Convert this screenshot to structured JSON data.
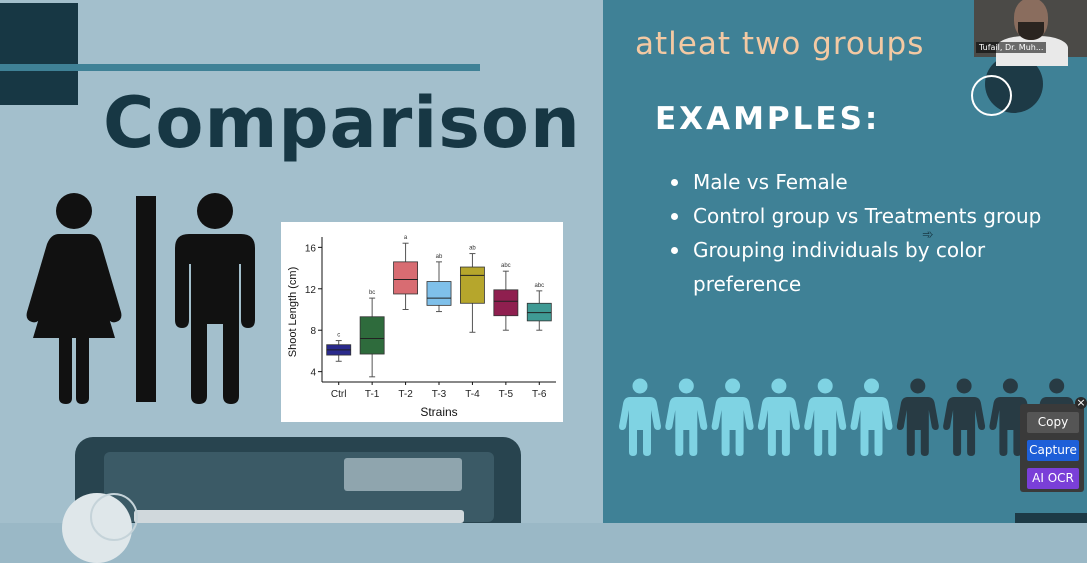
{
  "slide": {
    "left_title": "Comparison",
    "right_title": "atleat two groups",
    "examples_heading": "EXAMPLES:",
    "examples": [
      "Male vs Female",
      "Control group vs Treatments group",
      "Grouping individuals by color preference"
    ]
  },
  "chart_data": {
    "type": "box",
    "xlabel": "Strains",
    "ylabel": "Shoot Length (cm)",
    "ylim": [
      3,
      17
    ],
    "yticks": [
      4,
      8,
      12,
      16
    ],
    "categories": [
      "Ctrl",
      "T-1",
      "T-2",
      "T-3",
      "T-4",
      "T-5",
      "T-6"
    ],
    "boxes": [
      {
        "category": "Ctrl",
        "min": 5.0,
        "q1": 5.6,
        "median": 6.1,
        "q3": 6.6,
        "max": 7.0,
        "label": "c",
        "color": "#2a2a8c"
      },
      {
        "category": "T-1",
        "min": 3.5,
        "q1": 5.7,
        "median": 7.2,
        "q3": 9.3,
        "max": 11.1,
        "label": "bc",
        "color": "#2e6b3c"
      },
      {
        "category": "T-2",
        "min": 10.0,
        "q1": 11.5,
        "median": 12.9,
        "q3": 14.6,
        "max": 16.4,
        "label": "a",
        "color": "#d86c72"
      },
      {
        "category": "T-3",
        "min": 9.8,
        "q1": 10.4,
        "median": 11.1,
        "q3": 12.7,
        "max": 14.6,
        "label": "ab",
        "color": "#7fc0ea"
      },
      {
        "category": "T-4",
        "min": 7.8,
        "q1": 10.6,
        "median": 13.3,
        "q3": 14.1,
        "max": 15.4,
        "label": "ab",
        "color": "#b6a62c"
      },
      {
        "category": "T-5",
        "min": 8.0,
        "q1": 9.4,
        "median": 10.8,
        "q3": 11.9,
        "max": 13.7,
        "label": "abc",
        "color": "#8f1f4f"
      },
      {
        "category": "T-6",
        "min": 8.0,
        "q1": 8.9,
        "median": 9.7,
        "q3": 10.6,
        "max": 11.8,
        "label": "abc",
        "color": "#3f9a94"
      }
    ]
  },
  "people_row": {
    "light_count": 6,
    "dark_count": 4,
    "light_color": "#7fd3e3",
    "dark_color": "#283b44"
  },
  "video": {
    "participant_name": "Tufail, Dr. Muh..."
  },
  "ocr_tool": {
    "copy_label": "Copy",
    "capture_label": "Capture",
    "ai_ocr_label": "AI OCR",
    "close_symbol": "×",
    "copy_color": "#555555",
    "capture_color": "#1e5fd8",
    "ai_ocr_color": "#7a3fd8"
  },
  "colors": {
    "left_bg": "#a3bfcc",
    "right_bg": "#3f8196",
    "title_dark": "#173744",
    "accent_peach": "#f3c9a3"
  }
}
